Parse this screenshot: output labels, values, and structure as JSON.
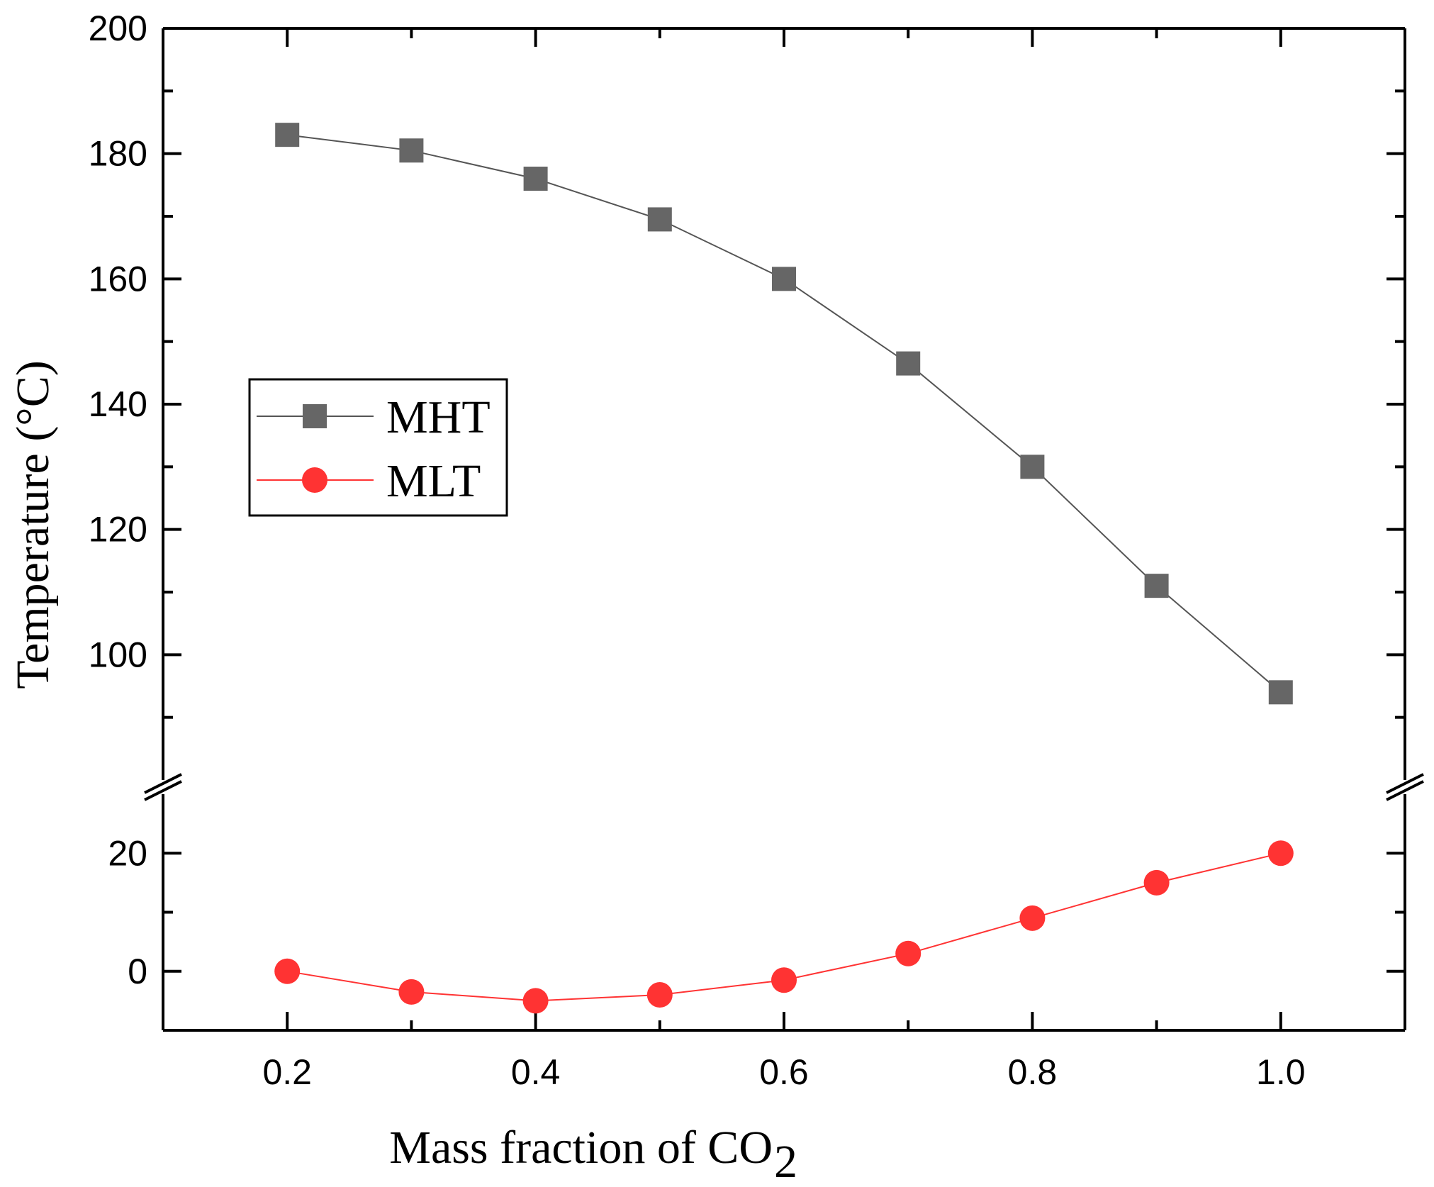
{
  "chart_data": {
    "type": "line",
    "title": "",
    "xlabel": "Mass fraction of CO",
    "xlabel_subscript": "2",
    "ylabel": "Temperature (°C)",
    "x": [
      0.2,
      0.3,
      0.4,
      0.5,
      0.6,
      0.7,
      0.8,
      0.9,
      1.0
    ],
    "xlim": [
      0.1,
      1.1
    ],
    "x_ticks": [
      "0.2",
      "0.4",
      "0.6",
      "0.8",
      "1.0"
    ],
    "y_axis_break": true,
    "y_upper_range": [
      80,
      200
    ],
    "y_upper_ticks": [
      "100",
      "120",
      "140",
      "160",
      "180",
      "200"
    ],
    "y_lower_range": [
      -10,
      30
    ],
    "y_lower_ticks": [
      "0",
      "20"
    ],
    "series": [
      {
        "name": "MHT",
        "marker": "square",
        "color": "#666666",
        "line_color": "#555555",
        "values": [
          183,
          180.5,
          176,
          169.5,
          160,
          146.5,
          130,
          111,
          94
        ]
      },
      {
        "name": "MLT",
        "marker": "circle",
        "color": "#ff3333",
        "line_color": "#ff3333",
        "values": [
          0,
          -3.5,
          -5,
          -4,
          -1.5,
          3,
          9,
          15,
          20
        ]
      }
    ],
    "legend": {
      "position": "center-left",
      "entries": [
        "MHT",
        "MLT"
      ]
    }
  }
}
